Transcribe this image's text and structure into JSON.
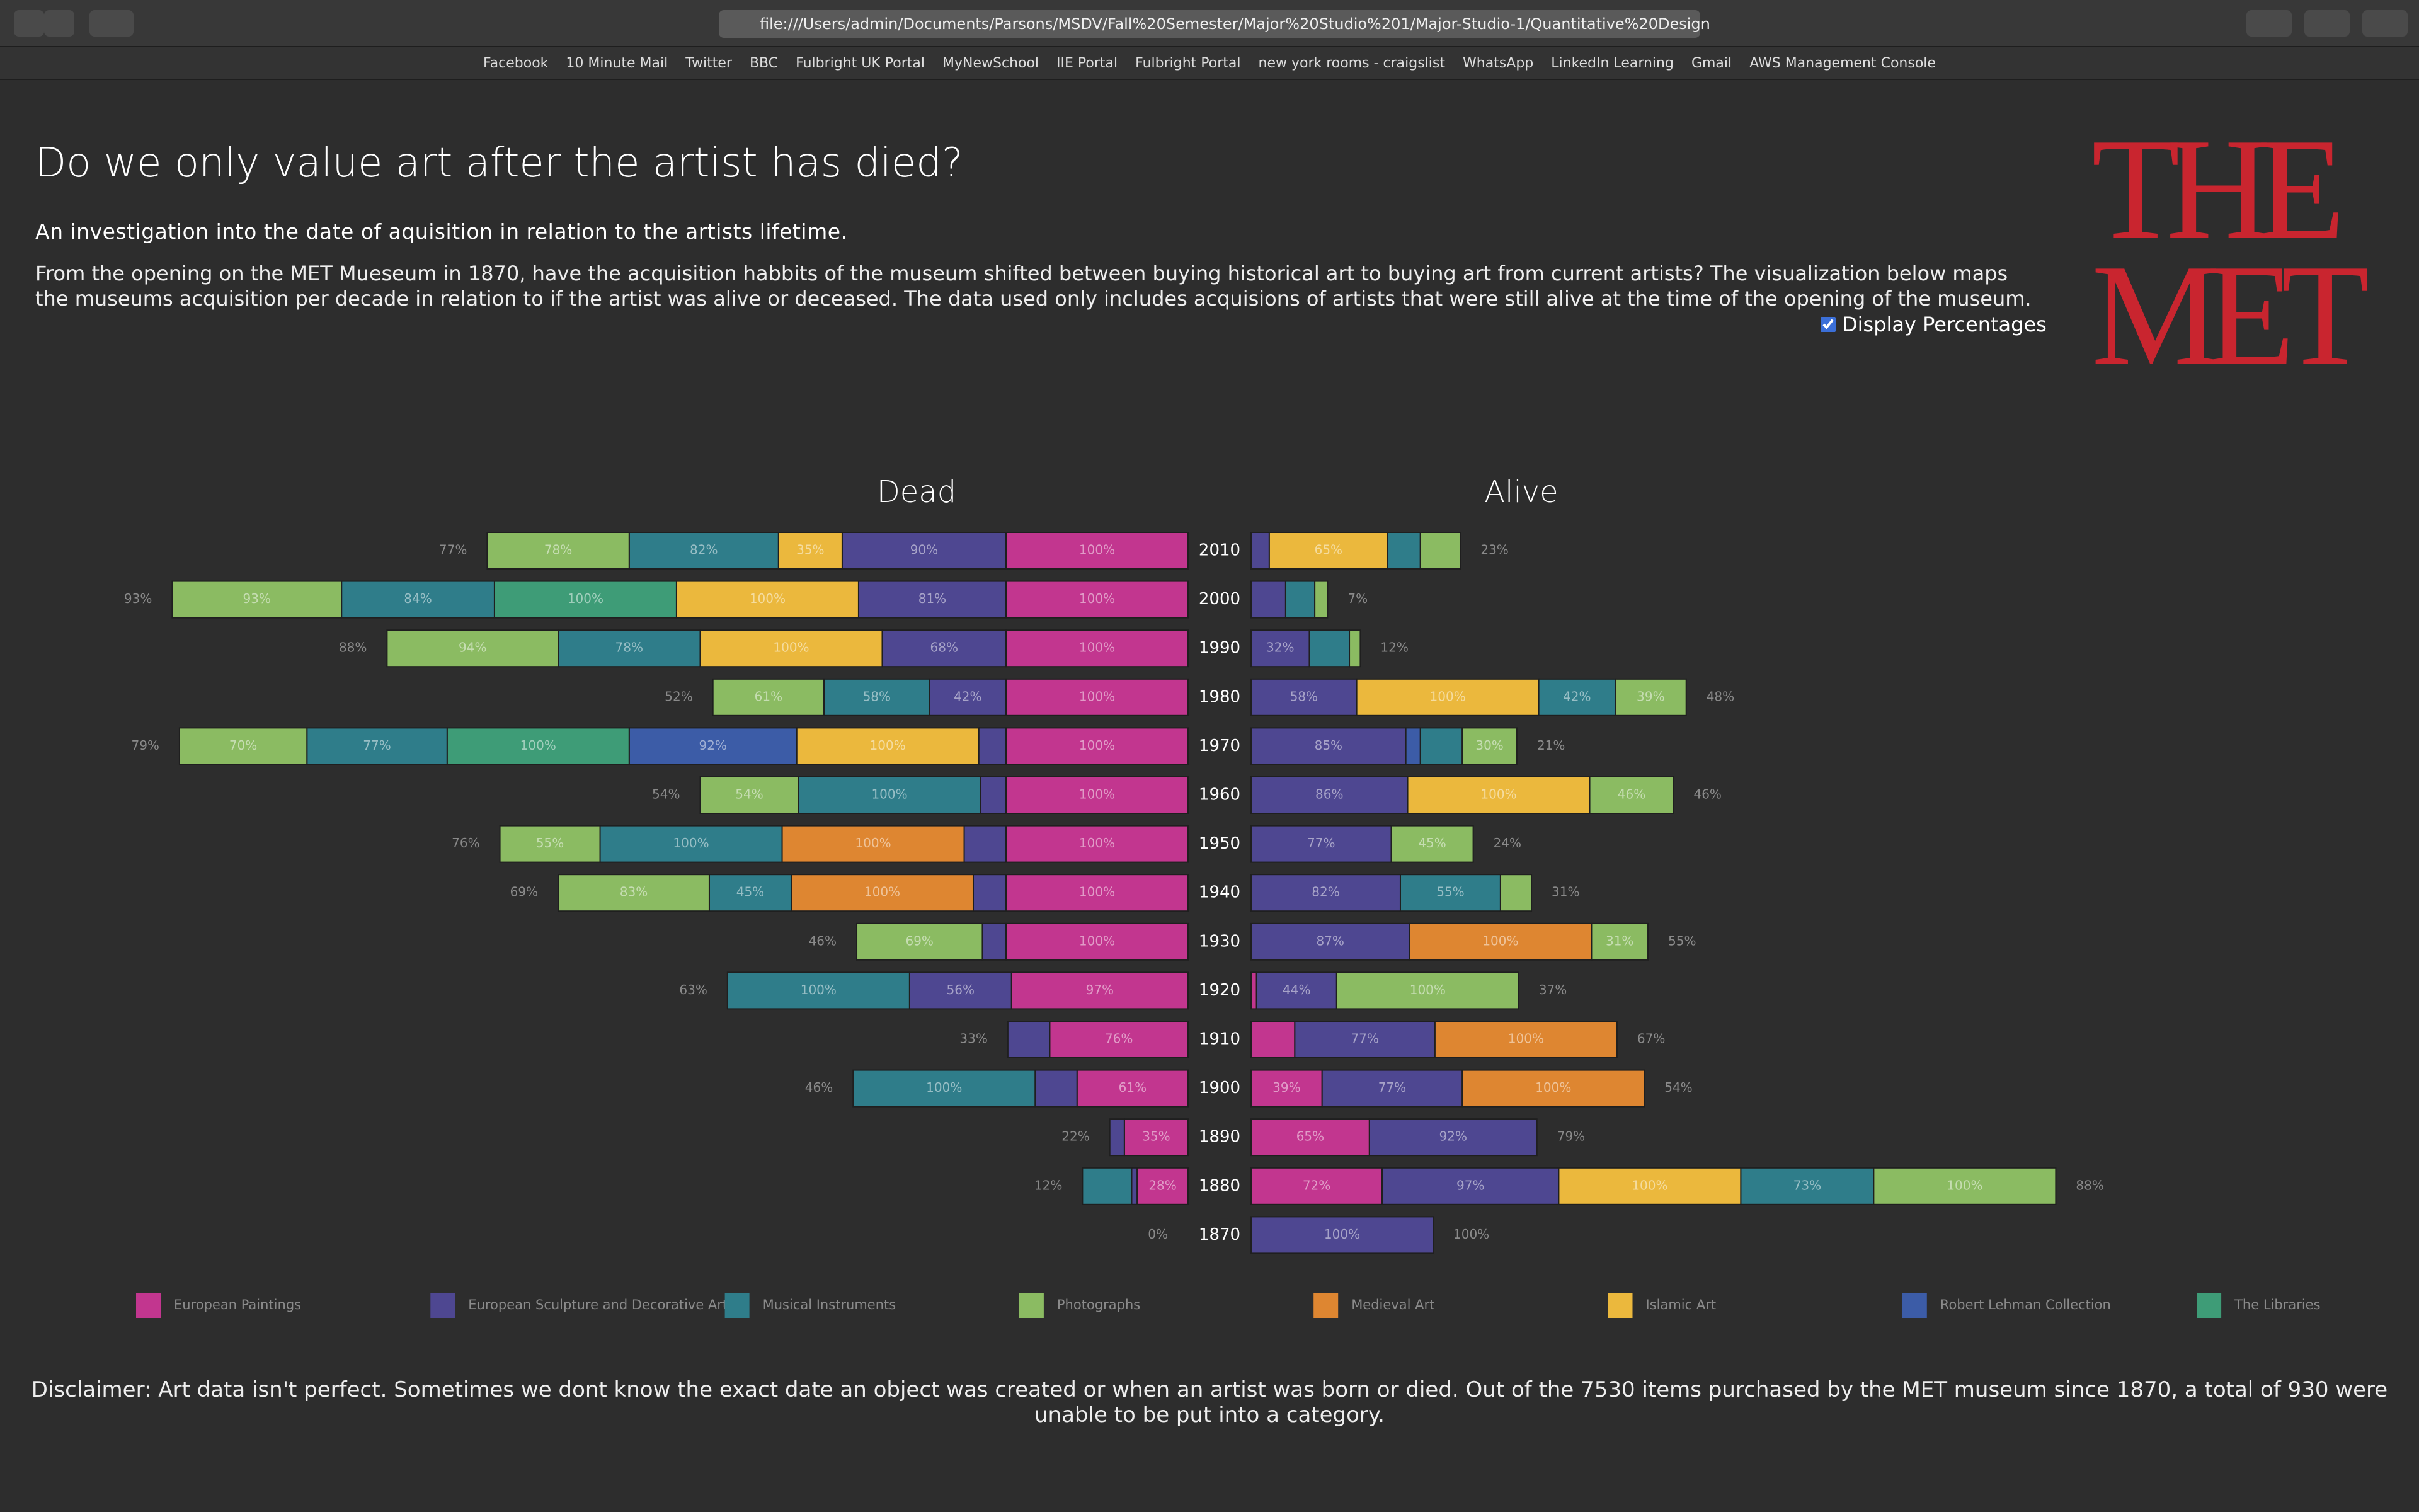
{
  "browser": {
    "address": "file:///Users/admin/Documents/Parsons/MSDV/Fall%20Semester/Major%20Studio%201/Major-Studio-1/Quantitative%20Design",
    "bookmarks": [
      "Facebook",
      "10 Minute Mail",
      "Twitter",
      "BBC",
      "Fulbright UK Portal",
      "MyNewSchool",
      "IIE Portal",
      "Fulbright Portal",
      "new york rooms - craigslist",
      "WhatsApp",
      "LinkedIn Learning",
      "Gmail",
      "AWS Management Console"
    ]
  },
  "page": {
    "title": "Do we only value art after the artist has died?",
    "subtitle": "An investigation into the date of aquisition in relation to the artists lifetime.",
    "description": "From the opening on the MET Mueseum in 1870, have the acquisition habbits of the museum shifted between buying historical art to buying art from current artists? The visualization below maps the museums acquisition per decade in relation to if the artist was alive or deceased. The data used only includes acquisions of artists that were still alive at the time of the opening of the museum.",
    "checkbox_label": "Display Percentages",
    "logo": [
      "THE",
      "MET"
    ],
    "disclaimer": "Disclaimer: Art data isn't perfect. Sometimes we dont know the exact date an object was created or when an artist was born or died. Out of the 7530 items purchased by the MET museum since 1870, a total of 930 were unable to be put into a category."
  },
  "chart_data": {
    "type": "diverging-stacked-bar",
    "dead_title": "Dead",
    "alive_title": "Alive",
    "categories": [
      "2010",
      "2000",
      "1990",
      "1980",
      "1970",
      "1960",
      "1950",
      "1940",
      "1930",
      "1920",
      "1910",
      "1900",
      "1890",
      "1880",
      "1870"
    ],
    "dead_totals": [
      77,
      93,
      88,
      52,
      79,
      54,
      76,
      69,
      46,
      63,
      33,
      46,
      22,
      12,
      0
    ],
    "dead_total_labels": [
      "77%",
      "93%",
      "88%",
      "52%",
      "79%",
      "54%",
      "76%",
      "69%",
      "46%",
      "63%",
      "33%",
      "46%",
      "22%",
      "12%",
      "0%"
    ],
    "alive_totals": [
      23,
      7,
      12,
      48,
      21,
      46,
      24,
      31,
      55,
      37,
      67,
      54,
      79,
      88,
      100
    ],
    "alive_total_labels": [
      "23%",
      "7%",
      "12%",
      "48%",
      "21%",
      "46%",
      "24%",
      "31%",
      "55%",
      "37%",
      "67%",
      "54%",
      "79%",
      "88%",
      "100%"
    ],
    "series": [
      {
        "name": "European Paintings",
        "color": "#c2368f",
        "dead": [
          100,
          100,
          100,
          100,
          100,
          100,
          100,
          100,
          100,
          97,
          76,
          61,
          35,
          28,
          null
        ],
        "dead_labels": [
          "100%",
          "100%",
          "100%",
          "100%",
          "100%",
          "100%",
          "100%",
          "100%",
          "100%",
          "97%",
          "76%",
          "61%",
          "35%",
          "28%",
          null
        ],
        "alive": [
          null,
          null,
          null,
          null,
          null,
          null,
          null,
          null,
          null,
          3,
          24,
          39,
          65,
          72,
          null
        ],
        "alive_labels": [
          null,
          null,
          null,
          null,
          null,
          null,
          null,
          null,
          null,
          null,
          null,
          "39%",
          "65%",
          "72%",
          null
        ]
      },
      {
        "name": "European Sculpture and Decorative Arts",
        "color": "#4e4791",
        "dead": [
          90,
          81,
          68,
          42,
          15,
          14,
          23,
          18,
          13,
          56,
          23,
          23,
          8,
          3,
          null
        ],
        "dead_labels": [
          "90%",
          "81%",
          "68%",
          "42%",
          null,
          null,
          null,
          null,
          null,
          "56%",
          null,
          null,
          null,
          null,
          null
        ],
        "alive": [
          10,
          19,
          32,
          58,
          85,
          86,
          77,
          82,
          87,
          44,
          77,
          77,
          92,
          97,
          100
        ],
        "alive_labels": [
          null,
          null,
          "32%",
          "58%",
          "85%",
          "86%",
          "77%",
          "82%",
          "87%",
          "44%",
          "77%",
          "77%",
          "92%",
          "97%",
          "100%"
        ]
      },
      {
        "name": "Musical Instruments",
        "color": "#2f7d8a",
        "dead": [
          82,
          84,
          78,
          58,
          77,
          100,
          100,
          45,
          null,
          100,
          null,
          100,
          null,
          27,
          null
        ],
        "dead_labels": [
          "82%",
          "84%",
          "78%",
          "58%",
          "77%",
          "100%",
          "100%",
          "45%",
          null,
          "100%",
          null,
          "100%",
          null,
          null,
          null
        ],
        "alive": [
          18,
          16,
          22,
          42,
          23,
          null,
          null,
          55,
          null,
          null,
          null,
          null,
          null,
          73,
          null
        ],
        "alive_labels": [
          null,
          null,
          null,
          "42%",
          null,
          null,
          null,
          "55%",
          null,
          null,
          null,
          null,
          null,
          "73%",
          null
        ]
      },
      {
        "name": "Photographs",
        "color": "#8bbb62",
        "dead": [
          78,
          93,
          94,
          61,
          70,
          54,
          55,
          83,
          69,
          null,
          null,
          null,
          null,
          null,
          null
        ],
        "dead_labels": [
          "78%",
          "93%",
          "94%",
          "61%",
          "70%",
          "54%",
          "55%",
          "83%",
          "69%",
          null,
          null,
          null,
          null,
          null,
          null
        ],
        "alive": [
          22,
          7,
          6,
          39,
          30,
          46,
          45,
          17,
          31,
          100,
          null,
          null,
          null,
          100,
          null
        ],
        "alive_labels": [
          null,
          null,
          null,
          "39%",
          "30%",
          "46%",
          "45%",
          null,
          "31%",
          "100%",
          null,
          null,
          null,
          "100%",
          null
        ]
      },
      {
        "name": "Medieval Art",
        "color": "#de8631",
        "dead": [
          null,
          null,
          null,
          null,
          null,
          null,
          100,
          100,
          null,
          null,
          null,
          null,
          null,
          null,
          null
        ],
        "dead_labels": [
          null,
          null,
          null,
          null,
          null,
          null,
          "100%",
          "100%",
          null,
          null,
          null,
          null,
          null,
          null,
          null
        ],
        "alive": [
          null,
          null,
          null,
          null,
          null,
          null,
          null,
          null,
          100,
          null,
          100,
          100,
          null,
          null,
          null
        ],
        "alive_labels": [
          null,
          null,
          null,
          null,
          null,
          null,
          null,
          null,
          "100%",
          null,
          "100%",
          "100%",
          null,
          null,
          null
        ]
      },
      {
        "name": "Islamic Art",
        "color": "#ebb83d",
        "dead": [
          35,
          100,
          100,
          null,
          100,
          null,
          null,
          null,
          null,
          null,
          null,
          null,
          null,
          null,
          null
        ],
        "dead_labels": [
          "35%",
          "100%",
          "100%",
          null,
          "100%",
          null,
          null,
          null,
          null,
          null,
          null,
          null,
          null,
          null,
          null
        ],
        "alive": [
          65,
          null,
          null,
          100,
          null,
          100,
          null,
          null,
          null,
          null,
          null,
          null,
          null,
          100,
          null
        ],
        "alive_labels": [
          "65%",
          null,
          null,
          "100%",
          null,
          "100%",
          null,
          null,
          null,
          null,
          null,
          null,
          null,
          "100%",
          null
        ]
      },
      {
        "name": "Robert Lehman Collection",
        "color": "#3c5ca7",
        "dead": [
          null,
          null,
          null,
          null,
          92,
          null,
          null,
          null,
          null,
          null,
          null,
          null,
          null,
          null,
          null
        ],
        "dead_labels": [
          null,
          null,
          null,
          null,
          "92%",
          null,
          null,
          null,
          null,
          null,
          null,
          null,
          null,
          null,
          null
        ],
        "alive": [
          null,
          null,
          null,
          null,
          8,
          null,
          null,
          null,
          null,
          null,
          null,
          null,
          null,
          null,
          null
        ],
        "alive_labels": [
          null,
          null,
          null,
          null,
          null,
          null,
          null,
          null,
          null,
          null,
          null,
          null,
          null,
          null,
          null
        ]
      },
      {
        "name": "The Libraries",
        "color": "#3e9c77",
        "dead": [
          null,
          100,
          null,
          null,
          100,
          null,
          null,
          null,
          null,
          null,
          null,
          null,
          null,
          null,
          null
        ],
        "dead_labels": [
          null,
          "100%",
          null,
          null,
          "100%",
          null,
          null,
          null,
          null,
          null,
          null,
          null,
          null,
          null,
          null
        ],
        "alive": [
          null,
          null,
          null,
          null,
          null,
          null,
          null,
          null,
          null,
          null,
          null,
          null,
          null,
          null,
          null
        ],
        "alive_labels": [
          null,
          null,
          null,
          null,
          null,
          null,
          null,
          null,
          null,
          null,
          null,
          null,
          null,
          null,
          null
        ]
      }
    ]
  }
}
